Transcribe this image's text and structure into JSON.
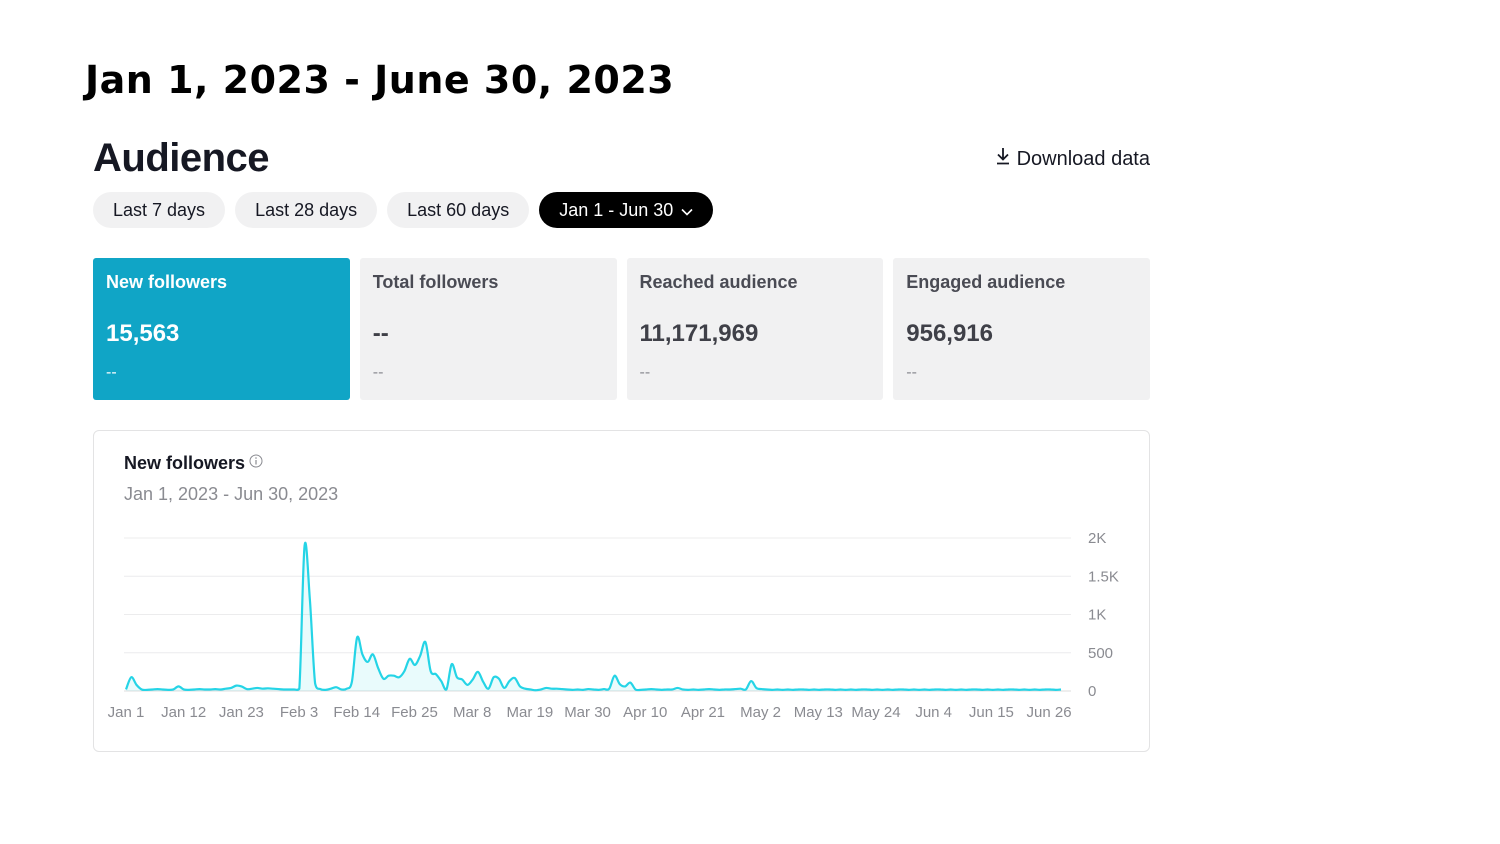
{
  "banner": {
    "text": "Jan 1, 2023 - June 30, 2023"
  },
  "header": {
    "title": "Audience",
    "download_label": "Download data",
    "download_icon": "download-icon"
  },
  "ranges": [
    {
      "label": "Last 7 days",
      "active": false
    },
    {
      "label": "Last 28 days",
      "active": false
    },
    {
      "label": "Last 60 days",
      "active": false
    },
    {
      "label": "Jan 1 - Jun 30",
      "active": true
    }
  ],
  "cards": [
    {
      "label": "New followers",
      "value": "15,563",
      "change": "--",
      "active": true
    },
    {
      "label": "Total followers",
      "value": "--",
      "change": "--",
      "active": false
    },
    {
      "label": "Reached audience",
      "value": "11,171,969",
      "change": "--",
      "active": false
    },
    {
      "label": "Engaged audience",
      "value": "956,916",
      "change": "--",
      "active": false
    }
  ],
  "colors": {
    "accent": "#10a5c6",
    "line": "#25d4e6",
    "active_pill": "#000000"
  },
  "chart_data": {
    "type": "area",
    "title": "New followers",
    "subtitle": "Jan 1, 2023 - Jun 30, 2023",
    "xlabel": "",
    "ylabel": "",
    "ylim": [
      0,
      2000
    ],
    "y_ticks": [
      0,
      500,
      1000,
      1500,
      2000
    ],
    "y_tick_labels": [
      "0",
      "500",
      "1K",
      "1.5K",
      "2K"
    ],
    "x_tick_labels": [
      "Jan 1",
      "Jan 12",
      "Jan 23",
      "Feb 3",
      "Feb 14",
      "Feb 25",
      "Mar 8",
      "Mar 19",
      "Mar 30",
      "Apr 10",
      "Apr 21",
      "May 2",
      "May 13",
      "May 24",
      "Jun 4",
      "Jun 15",
      "Jun 26"
    ],
    "grid": true,
    "series": [
      {
        "values": [
          20,
          180,
          80,
          20,
          15,
          20,
          25,
          20,
          15,
          20,
          60,
          20,
          15,
          20,
          25,
          20,
          20,
          25,
          20,
          30,
          40,
          70,
          60,
          25,
          30,
          40,
          30,
          35,
          30,
          25,
          20,
          20,
          20,
          30,
          1900,
          1200,
          100,
          25,
          15,
          30,
          50,
          20,
          30,
          120,
          700,
          480,
          380,
          480,
          300,
          160,
          200,
          200,
          180,
          260,
          420,
          340,
          460,
          640,
          260,
          220,
          130,
          20,
          350,
          180,
          150,
          80,
          150,
          250,
          120,
          30,
          180,
          160,
          40,
          130,
          170,
          60,
          30,
          20,
          10,
          20,
          40,
          30,
          30,
          25,
          20,
          15,
          20,
          15,
          25,
          20,
          15,
          25,
          30,
          200,
          90,
          60,
          110,
          20,
          15,
          20,
          25,
          20,
          15,
          20,
          20,
          40,
          20,
          15,
          20,
          15,
          20,
          25,
          20,
          15,
          20,
          20,
          25,
          30,
          20,
          130,
          40,
          25,
          20,
          15,
          20,
          15,
          20,
          15,
          20,
          20,
          15,
          20,
          15,
          20,
          20,
          15,
          20,
          15,
          20,
          15,
          20,
          20,
          15,
          20,
          15,
          20,
          15,
          20,
          20,
          15,
          20,
          15,
          20,
          15,
          20,
          20,
          15,
          20,
          15,
          20,
          15,
          20,
          20,
          15,
          20,
          15,
          20,
          15,
          20,
          20,
          15,
          20,
          15,
          20,
          15,
          20,
          20,
          15,
          20
        ]
      }
    ]
  }
}
